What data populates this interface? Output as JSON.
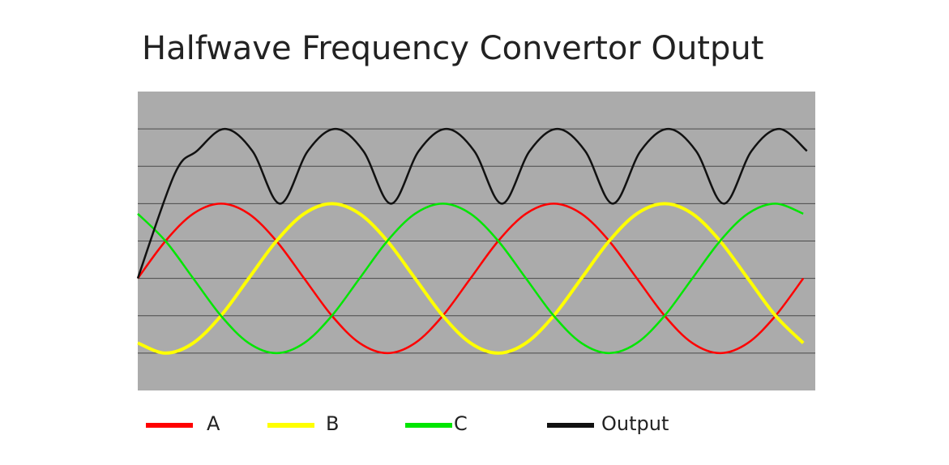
{
  "chart_data": {
    "type": "line",
    "title": "Halfwave Frequency Convertor Output",
    "x": [
      0,
      30,
      60,
      90,
      120,
      150,
      180,
      210,
      240,
      270,
      300,
      330,
      360,
      390,
      420,
      450,
      480,
      510,
      540,
      570,
      600,
      630,
      660,
      690,
      720
    ],
    "xlim": [
      0,
      733
    ],
    "ylim": [
      -3,
      5
    ],
    "yticks": [
      -2,
      -1,
      0,
      1,
      2,
      3,
      4
    ],
    "grid": true,
    "background": "#ababab",
    "series": [
      {
        "name": "A",
        "color": "#ff0000",
        "values": [
          0,
          1,
          1.73,
          2,
          1.73,
          1,
          0,
          -1,
          -1.73,
          -2,
          -1.73,
          -1,
          0,
          1,
          1.73,
          2,
          1.73,
          1,
          0,
          -1,
          -1.73,
          -2,
          -1.73,
          -1,
          0
        ]
      },
      {
        "name": "B",
        "color": "#ffff00",
        "values": [
          -1.73,
          -2,
          -1.73,
          -1,
          0,
          1,
          1.73,
          2,
          1.73,
          1,
          0,
          -1,
          -1.73,
          -2,
          -1.73,
          -1,
          0,
          1,
          1.73,
          2,
          1.73,
          1,
          0,
          -1,
          -1.73
        ]
      },
      {
        "name": "C",
        "color": "#00e600",
        "values": [
          1.73,
          1,
          0,
          -1,
          -1.73,
          -2,
          -1.73,
          -1,
          0,
          1,
          1.73,
          2,
          1.73,
          1,
          0,
          -1,
          -1.73,
          -2,
          -1.73,
          -1,
          0,
          1,
          1.73,
          2,
          1.73
        ]
      },
      {
        "name": "Output",
        "color": "#111111",
        "x": [
          0,
          40,
          64,
          94,
          124,
          154,
          184,
          214,
          244,
          274,
          304,
          334,
          364,
          394,
          424,
          454,
          484,
          514,
          544,
          574,
          604,
          634,
          664,
          694,
          724
        ],
        "values": [
          0,
          2.8,
          3.41,
          4,
          3.41,
          2,
          3.41,
          4,
          3.41,
          2,
          3.41,
          4,
          3.41,
          2,
          3.41,
          4,
          3.41,
          2,
          3.41,
          4,
          3.41,
          2,
          3.41,
          4,
          3.41
        ]
      }
    ]
  }
}
